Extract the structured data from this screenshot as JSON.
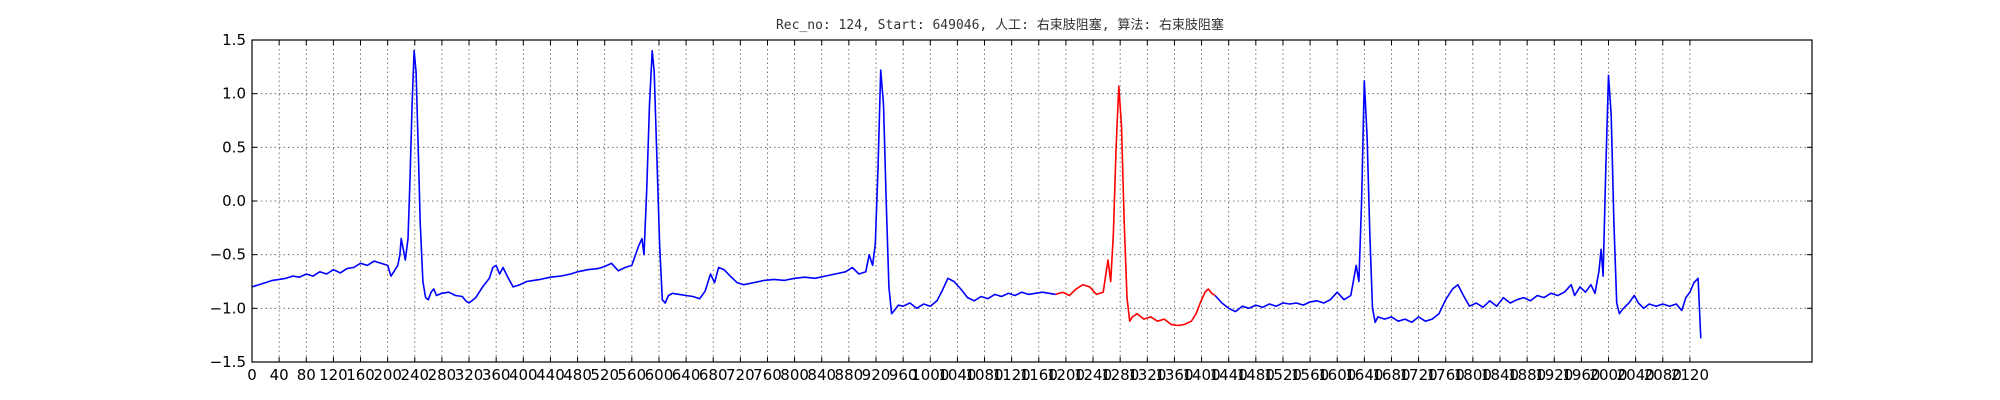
{
  "chart_data": {
    "type": "line",
    "title": "Rec_no: 124, Start: 649046, 人工: 右束肢阻塞, 算法: 右束肢阻塞",
    "xlabel": "",
    "ylabel": "",
    "xlim": [
      0,
      2300
    ],
    "ylim": [
      -1.5,
      1.5
    ],
    "grid": true,
    "x_ticks": [
      0,
      40,
      80,
      120,
      160,
      200,
      240,
      280,
      320,
      360,
      400,
      440,
      480,
      520,
      560,
      600,
      640,
      680,
      720,
      760,
      800,
      840,
      880,
      920,
      960,
      1000,
      1040,
      1080,
      1120,
      1160,
      1200,
      1240,
      1280,
      1320,
      1360,
      1400,
      1440,
      1480,
      1520,
      1560,
      1600,
      1640,
      1680,
      1720,
      1760,
      1800,
      1840,
      1880,
      1920,
      1960,
      2000,
      2040,
      2080,
      2120
    ],
    "x_tick_labels": [
      "0",
      "40",
      "80",
      "120",
      "160",
      "200",
      "240",
      "280",
      "320",
      "360",
      "400",
      "440",
      "480",
      "520",
      "560",
      "600",
      "640",
      "680",
      "720",
      "760",
      "800",
      "840",
      "880",
      "920",
      "960",
      "1000",
      "1040",
      "1080",
      "1120",
      "1160",
      "1200",
      "1240",
      "1280",
      "1320",
      "1360",
      "1400",
      "1440",
      "1480",
      "1520",
      "1560",
      "1600",
      "1640",
      "1680",
      "1720",
      "1760",
      "1800",
      "1840",
      "1880",
      "1920",
      "1960",
      "2000",
      "2040",
      "2080",
      "2120"
    ],
    "y_ticks": [
      -1.5,
      -1.0,
      -0.5,
      0.0,
      0.5,
      1.0,
      1.5
    ],
    "y_tick_labels": [
      "−1.5",
      "−1.0",
      "−0.5",
      "0.0",
      "0.5",
      "1.0",
      "1.5"
    ],
    "series": [
      {
        "color": "#0000ff",
        "segment": "before",
        "points": [
          [
            0,
            -0.8
          ],
          [
            10,
            -0.78
          ],
          [
            20,
            -0.76
          ],
          [
            30,
            -0.74
          ],
          [
            40,
            -0.73
          ],
          [
            50,
            -0.72
          ],
          [
            60,
            -0.7
          ],
          [
            70,
            -0.71
          ],
          [
            80,
            -0.68
          ],
          [
            90,
            -0.7
          ],
          [
            100,
            -0.66
          ],
          [
            110,
            -0.68
          ],
          [
            120,
            -0.64
          ],
          [
            130,
            -0.67
          ],
          [
            140,
            -0.63
          ],
          [
            150,
            -0.62
          ],
          [
            160,
            -0.58
          ],
          [
            170,
            -0.6
          ],
          [
            180,
            -0.56
          ],
          [
            190,
            -0.58
          ],
          [
            200,
            -0.6
          ],
          [
            205,
            -0.7
          ],
          [
            210,
            -0.65
          ],
          [
            215,
            -0.6
          ],
          [
            218,
            -0.5
          ],
          [
            220,
            -0.35
          ],
          [
            223,
            -0.45
          ],
          [
            226,
            -0.55
          ],
          [
            230,
            -0.35
          ],
          [
            233,
            0.2
          ],
          [
            236,
            0.9
          ],
          [
            239,
            1.4
          ],
          [
            242,
            1.2
          ],
          [
            245,
            0.5
          ],
          [
            248,
            -0.2
          ],
          [
            252,
            -0.75
          ],
          [
            256,
            -0.9
          ],
          [
            260,
            -0.92
          ],
          [
            264,
            -0.85
          ],
          [
            268,
            -0.82
          ],
          [
            272,
            -0.88
          ],
          [
            280,
            -0.86
          ],
          [
            290,
            -0.85
          ],
          [
            300,
            -0.88
          ],
          [
            310,
            -0.89
          ],
          [
            315,
            -0.93
          ],
          [
            320,
            -0.95
          ],
          [
            330,
            -0.9
          ],
          [
            340,
            -0.8
          ],
          [
            350,
            -0.72
          ],
          [
            355,
            -0.62
          ],
          [
            360,
            -0.6
          ],
          [
            365,
            -0.68
          ],
          [
            370,
            -0.62
          ],
          [
            378,
            -0.72
          ],
          [
            385,
            -0.8
          ],
          [
            395,
            -0.78
          ],
          [
            405,
            -0.75
          ],
          [
            415,
            -0.74
          ],
          [
            425,
            -0.73
          ],
          [
            440,
            -0.71
          ],
          [
            455,
            -0.7
          ],
          [
            470,
            -0.68
          ],
          [
            480,
            -0.66
          ],
          [
            495,
            -0.64
          ],
          [
            510,
            -0.63
          ],
          [
            520,
            -0.61
          ],
          [
            530,
            -0.58
          ],
          [
            540,
            -0.65
          ],
          [
            550,
            -0.62
          ],
          [
            560,
            -0.6
          ],
          [
            570,
            -0.42
          ],
          [
            575,
            -0.35
          ],
          [
            578,
            -0.5
          ],
          [
            582,
            0.1
          ],
          [
            586,
            0.9
          ],
          [
            590,
            1.4
          ],
          [
            593,
            1.2
          ],
          [
            597,
            0.4
          ],
          [
            601,
            -0.4
          ],
          [
            605,
            -0.92
          ],
          [
            609,
            -0.95
          ],
          [
            614,
            -0.88
          ],
          [
            620,
            -0.86
          ],
          [
            630,
            -0.87
          ],
          [
            640,
            -0.88
          ],
          [
            650,
            -0.89
          ],
          [
            660,
            -0.91
          ],
          [
            668,
            -0.84
          ],
          [
            676,
            -0.68
          ],
          [
            682,
            -0.76
          ],
          [
            688,
            -0.62
          ],
          [
            696,
            -0.64
          ],
          [
            705,
            -0.7
          ],
          [
            715,
            -0.76
          ],
          [
            725,
            -0.78
          ],
          [
            740,
            -0.76
          ],
          [
            755,
            -0.74
          ],
          [
            770,
            -0.73
          ],
          [
            785,
            -0.74
          ],
          [
            800,
            -0.72
          ],
          [
            815,
            -0.71
          ],
          [
            830,
            -0.72
          ],
          [
            845,
            -0.7
          ],
          [
            860,
            -0.68
          ],
          [
            875,
            -0.66
          ],
          [
            885,
            -0.62
          ],
          [
            895,
            -0.68
          ],
          [
            905,
            -0.66
          ],
          [
            910,
            -0.5
          ],
          [
            915,
            -0.6
          ],
          [
            919,
            -0.4
          ],
          [
            923,
            0.3
          ],
          [
            927,
            1.22
          ],
          [
            931,
            0.9
          ],
          [
            935,
            0.0
          ],
          [
            939,
            -0.8
          ],
          [
            943,
            -1.05
          ],
          [
            947,
            -1.02
          ],
          [
            953,
            -0.97
          ],
          [
            960,
            -0.98
          ],
          [
            970,
            -0.95
          ],
          [
            980,
            -1.0
          ],
          [
            990,
            -0.96
          ],
          [
            1000,
            -0.98
          ],
          [
            1010,
            -0.93
          ],
          [
            1018,
            -0.83
          ],
          [
            1026,
            -0.72
          ],
          [
            1035,
            -0.75
          ],
          [
            1045,
            -0.82
          ],
          [
            1055,
            -0.9
          ],
          [
            1065,
            -0.93
          ],
          [
            1075,
            -0.89
          ],
          [
            1085,
            -0.91
          ],
          [
            1095,
            -0.87
          ],
          [
            1105,
            -0.89
          ],
          [
            1115,
            -0.86
          ],
          [
            1125,
            -0.88
          ],
          [
            1135,
            -0.85
          ],
          [
            1145,
            -0.87
          ],
          [
            1155,
            -0.86
          ],
          [
            1165,
            -0.85
          ],
          [
            1175,
            -0.86
          ],
          [
            1185,
            -0.87
          ]
        ]
      },
      {
        "color": "#ff0000",
        "segment": "highlighted-beat",
        "points": [
          [
            1185,
            -0.87
          ],
          [
            1195,
            -0.85
          ],
          [
            1205,
            -0.88
          ],
          [
            1215,
            -0.82
          ],
          [
            1225,
            -0.78
          ],
          [
            1235,
            -0.8
          ],
          [
            1245,
            -0.87
          ],
          [
            1255,
            -0.85
          ],
          [
            1262,
            -0.55
          ],
          [
            1266,
            -0.75
          ],
          [
            1270,
            -0.3
          ],
          [
            1274,
            0.5
          ],
          [
            1278,
            1.07
          ],
          [
            1282,
            0.7
          ],
          [
            1286,
            -0.2
          ],
          [
            1290,
            -0.9
          ],
          [
            1294,
            -1.12
          ],
          [
            1298,
            -1.08
          ],
          [
            1305,
            -1.05
          ],
          [
            1315,
            -1.1
          ],
          [
            1325,
            -1.08
          ],
          [
            1335,
            -1.12
          ],
          [
            1345,
            -1.1
          ],
          [
            1355,
            -1.15
          ],
          [
            1365,
            -1.16
          ],
          [
            1375,
            -1.15
          ],
          [
            1385,
            -1.12
          ],
          [
            1392,
            -1.05
          ],
          [
            1398,
            -0.95
          ],
          [
            1405,
            -0.85
          ],
          [
            1410,
            -0.82
          ],
          [
            1415,
            -0.86
          ],
          [
            1420,
            -0.88
          ]
        ]
      },
      {
        "color": "#0000ff",
        "segment": "after",
        "points": [
          [
            1420,
            -0.88
          ],
          [
            1430,
            -0.95
          ],
          [
            1440,
            -1.0
          ],
          [
            1450,
            -1.03
          ],
          [
            1460,
            -0.98
          ],
          [
            1470,
            -1.0
          ],
          [
            1480,
            -0.97
          ],
          [
            1490,
            -0.99
          ],
          [
            1500,
            -0.96
          ],
          [
            1510,
            -0.98
          ],
          [
            1520,
            -0.95
          ],
          [
            1530,
            -0.96
          ],
          [
            1540,
            -0.95
          ],
          [
            1550,
            -0.97
          ],
          [
            1560,
            -0.94
          ],
          [
            1570,
            -0.93
          ],
          [
            1580,
            -0.95
          ],
          [
            1590,
            -0.92
          ],
          [
            1600,
            -0.85
          ],
          [
            1610,
            -0.92
          ],
          [
            1620,
            -0.88
          ],
          [
            1628,
            -0.6
          ],
          [
            1632,
            -0.75
          ],
          [
            1636,
            0.0
          ],
          [
            1640,
            1.12
          ],
          [
            1644,
            0.6
          ],
          [
            1648,
            -0.3
          ],
          [
            1652,
            -1.0
          ],
          [
            1656,
            -1.13
          ],
          [
            1660,
            -1.08
          ],
          [
            1670,
            -1.1
          ],
          [
            1680,
            -1.08
          ],
          [
            1690,
            -1.12
          ],
          [
            1700,
            -1.1
          ],
          [
            1710,
            -1.13
          ],
          [
            1720,
            -1.08
          ],
          [
            1730,
            -1.12
          ],
          [
            1740,
            -1.1
          ],
          [
            1750,
            -1.05
          ],
          [
            1760,
            -0.92
          ],
          [
            1770,
            -0.82
          ],
          [
            1778,
            -0.78
          ],
          [
            1786,
            -0.88
          ],
          [
            1795,
            -0.98
          ],
          [
            1805,
            -0.95
          ],
          [
            1815,
            -0.99
          ],
          [
            1825,
            -0.93
          ],
          [
            1835,
            -0.98
          ],
          [
            1845,
            -0.9
          ],
          [
            1855,
            -0.95
          ],
          [
            1865,
            -0.92
          ],
          [
            1875,
            -0.9
          ],
          [
            1885,
            -0.93
          ],
          [
            1895,
            -0.88
          ],
          [
            1905,
            -0.9
          ],
          [
            1915,
            -0.86
          ],
          [
            1925,
            -0.88
          ],
          [
            1935,
            -0.85
          ],
          [
            1945,
            -0.78
          ],
          [
            1950,
            -0.88
          ],
          [
            1958,
            -0.8
          ],
          [
            1966,
            -0.85
          ],
          [
            1974,
            -0.78
          ],
          [
            1980,
            -0.86
          ],
          [
            1986,
            -0.65
          ],
          [
            1989,
            -0.45
          ],
          [
            1992,
            -0.7
          ],
          [
            1996,
            0.3
          ],
          [
            2000,
            1.17
          ],
          [
            2004,
            0.8
          ],
          [
            2008,
            -0.2
          ],
          [
            2012,
            -0.95
          ],
          [
            2016,
            -1.05
          ],
          [
            2022,
            -1.0
          ],
          [
            2030,
            -0.95
          ],
          [
            2038,
            -0.88
          ],
          [
            2044,
            -0.95
          ],
          [
            2052,
            -1.0
          ],
          [
            2060,
            -0.96
          ],
          [
            2070,
            -0.98
          ],
          [
            2080,
            -0.96
          ],
          [
            2090,
            -0.98
          ],
          [
            2100,
            -0.96
          ],
          [
            2108,
            -1.02
          ],
          [
            2114,
            -0.9
          ],
          [
            2120,
            -0.85
          ],
          [
            2126,
            -0.76
          ],
          [
            2132,
            -0.72
          ],
          [
            2136,
            -1.28
          ]
        ]
      }
    ]
  }
}
